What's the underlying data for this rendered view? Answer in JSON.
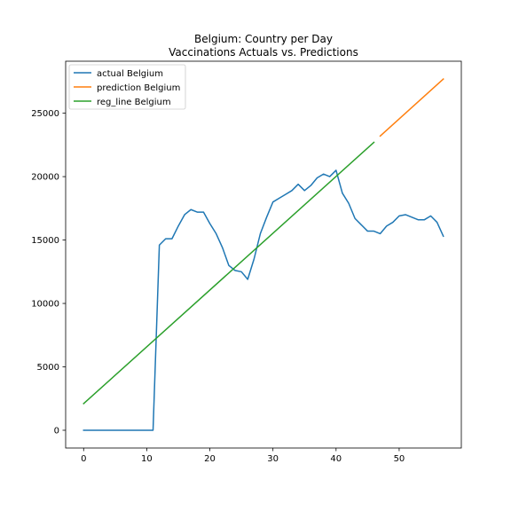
{
  "chart_data": {
    "type": "line",
    "title_lines": [
      "Belgium: Country per Day",
      "Vaccinations Actuals vs. Predictions"
    ],
    "xlabel": "",
    "ylabel": "",
    "xlim": [
      -2.85,
      59.85
    ],
    "ylim": [
      -1400,
      29100
    ],
    "x_ticks": [
      0,
      10,
      20,
      30,
      40,
      50
    ],
    "y_ticks": [
      0,
      5000,
      10000,
      15000,
      20000,
      25000
    ],
    "grid": false,
    "legend_position": "top-left",
    "series": [
      {
        "name": "actual Belgium",
        "color": "#1f77b4",
        "x": [
          0,
          1,
          2,
          3,
          4,
          5,
          6,
          7,
          8,
          9,
          10,
          11,
          12,
          13,
          14,
          15,
          16,
          17,
          18,
          19,
          20,
          21,
          22,
          23,
          24,
          25,
          26,
          27,
          28,
          29,
          30,
          31,
          32,
          33,
          34,
          35,
          36,
          37,
          38,
          39,
          40,
          41,
          42,
          43,
          44,
          45,
          46,
          47,
          48,
          49,
          50,
          51,
          52,
          53,
          54,
          55,
          56,
          57
        ],
        "y": [
          0,
          0,
          0,
          0,
          0,
          0,
          0,
          0,
          0,
          0,
          0,
          0,
          14600,
          15100,
          15100,
          16100,
          17000,
          17400,
          17200,
          17200,
          16300,
          15500,
          14400,
          13000,
          12600,
          12500,
          11900,
          13500,
          15500,
          16800,
          18000,
          18300,
          18600,
          18900,
          19400,
          18900,
          19300,
          19900,
          20200,
          20000,
          20500,
          18700,
          17900,
          16700,
          16200,
          15700,
          15700,
          15500,
          16100,
          16400,
          16900,
          17000,
          16800,
          16600,
          16600,
          16900,
          16400,
          15300
        ]
      },
      {
        "name": "prediction Belgium",
        "color": "#ff7f0e",
        "x": [
          47,
          57
        ],
        "y": [
          23200,
          27700
        ]
      },
      {
        "name": "reg_line Belgium",
        "color": "#2ca02c",
        "x": [
          0,
          46
        ],
        "y": [
          2100,
          22700
        ]
      }
    ]
  }
}
